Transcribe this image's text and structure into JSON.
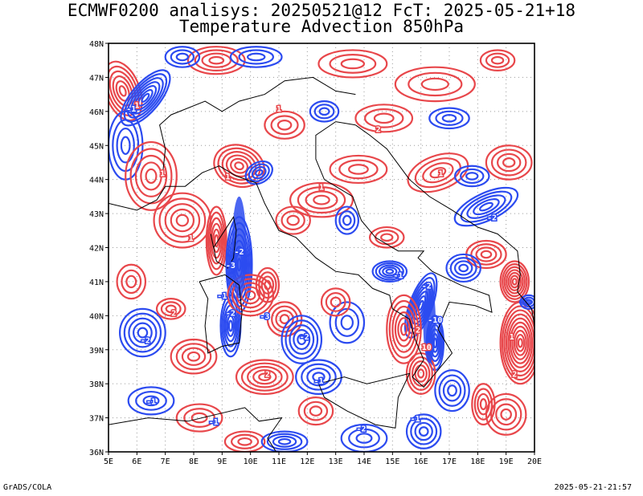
{
  "title_line1": "ECMWF0200 analisys: 20250521@12 FcT: 2025-05-21+18",
  "title_line2": "Temperature Advection 850hPa",
  "map": {
    "region": "Italy and central Mediterranean",
    "lon_range": [
      5,
      20
    ],
    "lat_range": [
      36,
      48
    ],
    "lon_ticks": [
      "5E",
      "6E",
      "7E",
      "8E",
      "9E",
      "10E",
      "11E",
      "12E",
      "13E",
      "14E",
      "15E",
      "16E",
      "17E",
      "18E",
      "19E",
      "20E"
    ],
    "lat_ticks": [
      "36N",
      "37N",
      "38N",
      "39N",
      "40N",
      "41N",
      "42N",
      "43N",
      "44N",
      "45N",
      "46N",
      "47N",
      "48N"
    ],
    "colors": {
      "warm_advection": "#e8474b",
      "cold_advection": "#2c4bf0",
      "coastline": "#000000",
      "grid": "#9a9a9a"
    },
    "contour_labels": [
      "1",
      "2",
      "-1",
      "-2",
      "3",
      "-3",
      "5",
      "-5",
      "-10",
      "10"
    ]
  },
  "footer": {
    "left": "GrADS/COLA",
    "right": "2025-05-21-21:57"
  }
}
